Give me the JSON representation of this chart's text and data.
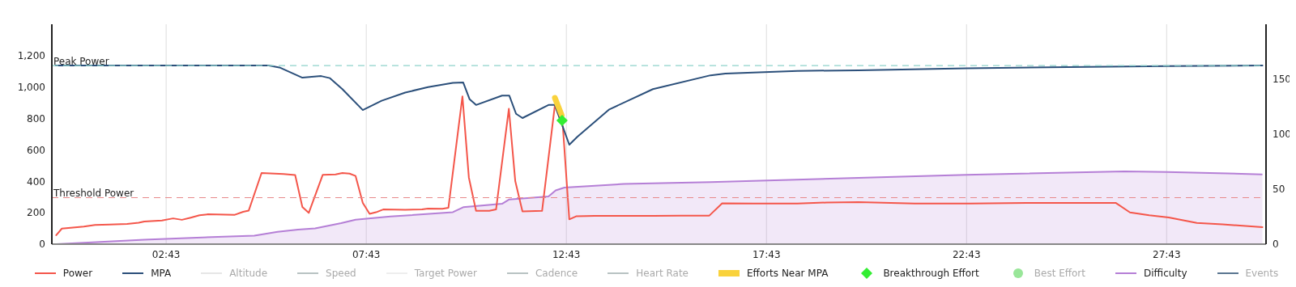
{
  "chart_data": {
    "type": "line",
    "xlim": [
      -0.14,
      30.2
    ],
    "xticks": [
      {
        "value": 2.7167,
        "label": "02:43"
      },
      {
        "value": 7.7167,
        "label": "07:43"
      },
      {
        "value": 12.7167,
        "label": "12:43"
      },
      {
        "value": 17.7167,
        "label": "17:43"
      },
      {
        "value": 22.7167,
        "label": "22:43"
      },
      {
        "value": 27.7167,
        "label": "27:43"
      }
    ],
    "ylim": [
      0,
      1400
    ],
    "yticks": [
      0,
      200,
      400,
      600,
      800,
      {
        "value": 1000,
        "label": "1,000"
      },
      {
        "value": 1200,
        "label": "1,200"
      }
    ],
    "y2lim": [
      0,
      200
    ],
    "y2ticks": [
      0,
      50,
      100,
      150
    ],
    "grid": "x",
    "legend": "bottom",
    "ref_lines": [
      {
        "axis": "y",
        "value": 1137,
        "label": "Peak Power",
        "color": "#8fd3cb",
        "line_style": "dashed"
      },
      {
        "axis": "y",
        "value": 296,
        "label": "Threshold Power",
        "color": "#e8898a",
        "line_style": "dashed"
      }
    ],
    "series": [
      {
        "name": "Power",
        "color": "#f4564a",
        "x": [
          -0.03,
          0.11,
          0.44,
          0.66,
          0.94,
          1.3,
          1.74,
          2.03,
          2.17,
          2.61,
          2.89,
          3.11,
          3.33,
          3.55,
          3.76,
          4.2,
          4.42,
          4.64,
          4.78,
          5.1,
          5.43,
          5.65,
          5.94,
          6.12,
          6.28,
          6.63,
          6.95,
          7.12,
          7.3,
          7.45,
          7.63,
          7.8,
          7.96,
          8.14,
          8.69,
          9.11,
          9.26,
          9.62,
          9.77,
          10.12,
          10.28,
          10.46,
          10.79,
          10.96,
          11.28,
          11.44,
          11.62,
          12.11,
          12.43,
          12.63,
          12.79,
          12.96,
          13.42,
          14.15,
          14.88,
          15.59,
          16.29,
          16.61,
          17.4,
          18.49,
          19.22,
          20.02,
          21.42,
          22.82,
          24.21,
          25.61,
          26.45,
          26.8,
          27.28,
          27.77,
          28.47,
          29.11,
          30.11
        ],
        "values": [
          57,
          99,
          107,
          112,
          122,
          125,
          129,
          136,
          144,
          151,
          164,
          155,
          169,
          184,
          190,
          188,
          186,
          206,
          214,
          453,
          449,
          447,
          440,
          237,
          199,
          442,
          444,
          453,
          449,
          434,
          263,
          193,
          203,
          221,
          219,
          221,
          226,
          225,
          232,
          941,
          425,
          212,
          212,
          221,
          862,
          401,
          208,
          212,
          885,
          747,
          158,
          177,
          180,
          180,
          180,
          182,
          182,
          260,
          258,
          258,
          265,
          268,
          259,
          259,
          262,
          262,
          262,
          202,
          184,
          170,
          135,
          126,
          108
        ]
      },
      {
        "name": "MPA",
        "color": "#2b4f7a",
        "x": [
          -0.05,
          5.28,
          5.57,
          6.12,
          6.59,
          6.81,
          7.12,
          7.63,
          8.1,
          8.69,
          9.26,
          9.88,
          10.14,
          10.3,
          10.46,
          11.11,
          11.29,
          11.46,
          11.62,
          12.27,
          12.43,
          12.79,
          12.99,
          13.79,
          14.88,
          16.32,
          16.69,
          18.49,
          20.02,
          22.71,
          27.72,
          30.11
        ],
        "values": [
          1138,
          1138,
          1123,
          1060,
          1070,
          1057,
          987,
          854,
          913,
          965,
          1000,
          1027,
          1029,
          922,
          886,
          946,
          946,
          830,
          803,
          886,
          886,
          633,
          683,
          858,
          987,
          1075,
          1086,
          1103,
          1107,
          1120,
          1134,
          1137
        ]
      },
      {
        "name": "Altitude",
        "color": "#e6e6e6"
      },
      {
        "name": "Speed",
        "color": "#b8c2c2"
      },
      {
        "name": "Target Power",
        "color": "#eeeeee"
      },
      {
        "name": "Cadence",
        "color": "#b8c2c2"
      },
      {
        "name": "Heart Rate",
        "color": "#b8c2c2"
      },
      {
        "name": "Efforts Near MPA",
        "color": "#f9d23c",
        "x": [
          12.43,
          12.6
        ],
        "values": [
          931,
          821
        ]
      },
      {
        "name": "Breakthrough Effort",
        "type": "scatter",
        "marker": "diamond",
        "color": "#33ee33",
        "x": [
          12.61
        ],
        "values": [
          788
        ]
      },
      {
        "name": "Best Effort",
        "type": "scatter",
        "marker": "circle",
        "color": "#99e699"
      },
      {
        "name": "Difficulty",
        "type": "area",
        "axis": "y2",
        "color": "#b57fd6",
        "x": [
          -0.03,
          2.17,
          4.92,
          5.5,
          6.01,
          6.44,
          7.09,
          7.45,
          8.32,
          9.88,
          10.14,
          11.11,
          11.29,
          12.27,
          12.45,
          12.67,
          14.15,
          16.32,
          20.37,
          22.71,
          26.66,
          27.72,
          30.11
        ],
        "values": [
          0,
          4.1,
          7.8,
          11.2,
          13.3,
          14.4,
          19.1,
          22.3,
          25.1,
          29.1,
          33.6,
          36.7,
          40.7,
          43.4,
          48.9,
          51.5,
          54.7,
          56.5,
          60.7,
          63.1,
          66.1,
          65.6,
          63.5
        ]
      },
      {
        "name": "Events",
        "color": "#5a7590"
      }
    ]
  }
}
